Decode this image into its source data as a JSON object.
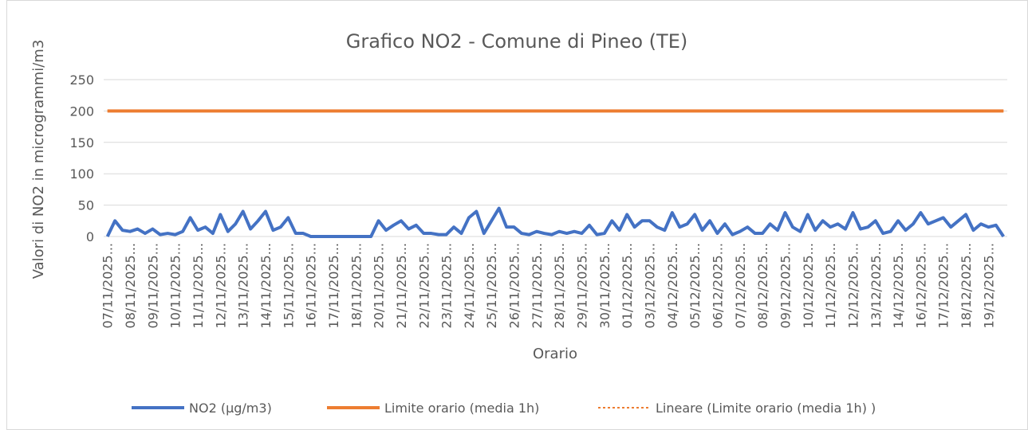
{
  "chart_data": {
    "type": "line",
    "title": "Grafico NO2 - Comune di Pineo (TE)",
    "y_label": "Valori di NO2 in microgrammi/m3",
    "x_label": "Orario",
    "categories": [
      "07/11/2025...",
      null,
      null,
      "08/11/2025...",
      null,
      null,
      "09/11/2025...",
      null,
      null,
      "10/11/2025...",
      null,
      null,
      "11/11/2025...",
      null,
      null,
      "12/11/2025...",
      null,
      null,
      "13/11/2025...",
      null,
      null,
      "14/11/2025...",
      null,
      null,
      "15/11/2025...",
      null,
      null,
      "16/11/2025...",
      null,
      null,
      "17/11/2025...",
      null,
      null,
      "18/11/2025...",
      null,
      null,
      "20/11/2025...",
      null,
      null,
      "21/11/2025...",
      null,
      null,
      "22/11/2025...",
      null,
      null,
      "23/11/2025...",
      null,
      null,
      "24/11/2025...",
      null,
      null,
      "25/11/2025...",
      null,
      null,
      "26/11/2025...",
      null,
      null,
      "27/11/2025...",
      null,
      null,
      "28/11/2025...",
      null,
      null,
      "29/11/2025...",
      null,
      null,
      "30/11/2025...",
      null,
      null,
      "01/12/2025...",
      null,
      null,
      "03/12/2025...",
      null,
      null,
      "04/12/2025...",
      null,
      null,
      "05/12/2025...",
      null,
      null,
      "06/12/2025...",
      null,
      null,
      "07/12/2025...",
      null,
      null,
      "08/12/2025...",
      null,
      null,
      "09/12/2025...",
      null,
      null,
      "10/12/2025...",
      null,
      null,
      "11/12/2025...",
      null,
      null,
      "12/12/2025...",
      null,
      null,
      "13/12/2025...",
      null,
      null,
      "14/12/2025...",
      null,
      null,
      "16/12/2025...",
      null,
      null,
      "17/12/2025...",
      null,
      null,
      "18/12/2025...",
      null,
      null,
      "19/12/2025...",
      null,
      null
    ],
    "series": [
      {
        "name": "NO2 (µg/m3)",
        "color": "#4472c4",
        "dash": "solid",
        "values": [
          0,
          25,
          10,
          8,
          12,
          5,
          12,
          3,
          5,
          3,
          8,
          30,
          10,
          15,
          5,
          35,
          8,
          20,
          40,
          12,
          25,
          40,
          10,
          15,
          30,
          5,
          5,
          0,
          0,
          0,
          0,
          0,
          0,
          0,
          0,
          0,
          25,
          10,
          18,
          25,
          12,
          18,
          5,
          5,
          3,
          3,
          15,
          5,
          30,
          40,
          5,
          25,
          45,
          15,
          15,
          5,
          3,
          8,
          5,
          3,
          8,
          5,
          8,
          5,
          18,
          3,
          5,
          25,
          10,
          35,
          15,
          25,
          25,
          15,
          10,
          38,
          15,
          20,
          35,
          10,
          25,
          5,
          20,
          3,
          8,
          15,
          5,
          5,
          20,
          10,
          38,
          15,
          8,
          35,
          10,
          25,
          15,
          20,
          12,
          38,
          12,
          15,
          25,
          5,
          8,
          25,
          10,
          20,
          38,
          20,
          25,
          30,
          15,
          25,
          35,
          10,
          20,
          15,
          18,
          0
        ]
      },
      {
        "name": "Limite orario (media 1h)",
        "color": "#ed7d31",
        "dash": "solid",
        "values": [
          200,
          200,
          200,
          200,
          200,
          200,
          200,
          200,
          200,
          200,
          200,
          200,
          200,
          200,
          200,
          200,
          200,
          200,
          200,
          200,
          200,
          200,
          200,
          200,
          200,
          200,
          200,
          200,
          200,
          200,
          200,
          200,
          200,
          200,
          200,
          200,
          200,
          200,
          200,
          200,
          200,
          200,
          200,
          200,
          200,
          200,
          200,
          200,
          200,
          200,
          200,
          200,
          200,
          200,
          200,
          200,
          200,
          200,
          200,
          200,
          200,
          200,
          200,
          200,
          200,
          200,
          200,
          200,
          200,
          200,
          200,
          200,
          200,
          200,
          200,
          200,
          200,
          200,
          200,
          200,
          200,
          200,
          200,
          200,
          200,
          200,
          200,
          200,
          200,
          200,
          200,
          200,
          200,
          200,
          200,
          200,
          200,
          200,
          200,
          200,
          200,
          200,
          200,
          200,
          200,
          200,
          200,
          200,
          200,
          200,
          200,
          200,
          200,
          200,
          200,
          200,
          200,
          200,
          200,
          200
        ]
      },
      {
        "name": "Lineare (Limite orario (media 1h) )",
        "color": "#ed7d31",
        "dash": "dotted",
        "values": [
          200,
          200,
          200,
          200,
          200,
          200,
          200,
          200,
          200,
          200,
          200,
          200,
          200,
          200,
          200,
          200,
          200,
          200,
          200,
          200,
          200,
          200,
          200,
          200,
          200,
          200,
          200,
          200,
          200,
          200,
          200,
          200,
          200,
          200,
          200,
          200,
          200,
          200,
          200,
          200,
          200,
          200,
          200,
          200,
          200,
          200,
          200,
          200,
          200,
          200,
          200,
          200,
          200,
          200,
          200,
          200,
          200,
          200,
          200,
          200,
          200,
          200,
          200,
          200,
          200,
          200,
          200,
          200,
          200,
          200,
          200,
          200,
          200,
          200,
          200,
          200,
          200,
          200,
          200,
          200,
          200,
          200,
          200,
          200,
          200,
          200,
          200,
          200,
          200,
          200,
          200,
          200,
          200,
          200,
          200,
          200,
          200,
          200,
          200,
          200,
          200,
          200,
          200,
          200,
          200,
          200,
          200,
          200,
          200,
          200,
          200,
          200,
          200,
          200,
          200,
          200,
          200,
          200,
          200,
          200
        ]
      }
    ],
    "ylim": [
      0,
      250
    ],
    "yticks": [
      0,
      50,
      100,
      150,
      200,
      250
    ],
    "grid": true,
    "legend": "bottom"
  }
}
